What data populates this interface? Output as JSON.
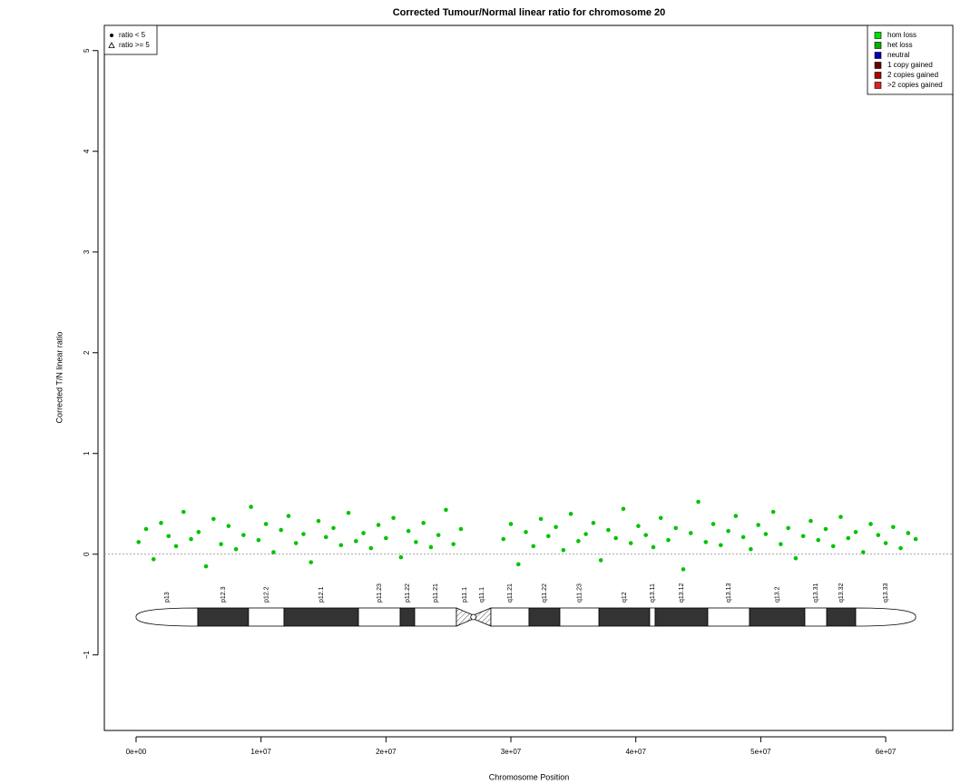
{
  "chart_data": {
    "type": "scatter",
    "title": "Corrected Tumour/Normal linear ratio for chromosome  20",
    "x_label": "Chromosome Position",
    "y_label": "Corrected T/N linear ratio",
    "xlim": [
      -2540000,
      65370000
    ],
    "ylim": [
      -1.75,
      5.25
    ],
    "xticks": [
      {
        "value": 0,
        "label": "0e+00"
      },
      {
        "value": 10000000,
        "label": "1e+07"
      },
      {
        "value": 20000000,
        "label": "2e+07"
      },
      {
        "value": 30000000,
        "label": "3e+07"
      },
      {
        "value": 40000000,
        "label": "4e+07"
      },
      {
        "value": 50000000,
        "label": "5e+07"
      },
      {
        "value": 60000000,
        "label": "6e+07"
      }
    ],
    "yticks": [
      {
        "value": -1,
        "label": "−1"
      },
      0,
      1,
      2,
      3,
      4,
      5
    ],
    "h_line": 0,
    "point_color": "#00c400",
    "x": [
      200000,
      800000,
      1400000,
      2000000,
      2600000,
      3200000,
      3800000,
      4400000,
      5000000,
      5600000,
      6200000,
      6800000,
      7400000,
      8000000,
      8600000,
      9200000,
      9800000,
      10400000,
      11000000,
      11600000,
      12200000,
      12800000,
      13400000,
      14000000,
      14600000,
      15200000,
      15800000,
      16400000,
      17000000,
      17600000,
      18200000,
      18800000,
      19400000,
      20000000,
      20600000,
      21200000,
      21800000,
      22400000,
      23000000,
      23600000,
      24200000,
      24800000,
      25400000,
      26000000,
      29400000,
      30000000,
      30600000,
      31200000,
      31800000,
      32400000,
      33000000,
      33600000,
      34200000,
      34800000,
      35400000,
      36000000,
      36600000,
      37200000,
      37800000,
      38400000,
      39000000,
      39600000,
      40200000,
      40800000,
      41400000,
      42000000,
      42600000,
      43200000,
      43800000,
      44400000,
      45000000,
      45600000,
      46200000,
      46800000,
      47400000,
      48000000,
      48600000,
      49200000,
      49800000,
      50400000,
      51000000,
      51600000,
      52200000,
      52800000,
      53400000,
      54000000,
      54600000,
      55200000,
      55800000,
      56400000,
      57000000,
      57600000,
      58200000,
      58800000,
      59400000,
      60000000,
      60600000,
      61200000,
      61800000,
      62400000
    ],
    "y": [
      0.12,
      0.25,
      -0.05,
      0.31,
      0.18,
      0.08,
      0.42,
      0.15,
      0.22,
      -0.12,
      0.35,
      0.1,
      0.28,
      0.05,
      0.19,
      0.47,
      0.14,
      0.3,
      0.02,
      0.24,
      0.38,
      0.11,
      0.2,
      -0.08,
      0.33,
      0.17,
      0.26,
      0.09,
      0.41,
      0.13,
      0.21,
      0.06,
      0.29,
      0.16,
      0.36,
      -0.03,
      0.23,
      0.12,
      0.31,
      0.07,
      0.19,
      0.44,
      0.1,
      0.25,
      0.15,
      0.3,
      -0.1,
      0.22,
      0.08,
      0.35,
      0.18,
      0.27,
      0.04,
      0.4,
      0.13,
      0.2,
      0.31,
      -0.06,
      0.24,
      0.16,
      0.45,
      0.11,
      0.28,
      0.19,
      0.07,
      0.36,
      0.14,
      0.26,
      -0.15,
      0.21,
      0.52,
      0.12,
      0.3,
      0.09,
      0.23,
      0.38,
      0.17,
      0.05,
      0.29,
      0.2,
      0.42,
      0.1,
      0.26,
      -0.04,
      0.18,
      0.33,
      0.14,
      0.25,
      0.08,
      0.37,
      0.16,
      0.22,
      0.02,
      0.3,
      0.19,
      0.11,
      0.27,
      0.06,
      0.21,
      0.15
    ],
    "shape_legend": [
      {
        "label": "ratio < 5",
        "shape": "circle"
      },
      {
        "label": "ratio >= 5",
        "shape": "triangle"
      }
    ],
    "legend": [
      {
        "label": "hom loss",
        "color": "#00e000"
      },
      {
        "label": "het loss",
        "color": "#00b000"
      },
      {
        "label": "neutral",
        "color": "#0000b0"
      },
      {
        "label": "1 copy gained",
        "color": "#6a0000"
      },
      {
        "label": "2 copies gained",
        "color": "#b00000"
      },
      {
        "label": ">2 copies gained",
        "color": "#e02020"
      }
    ],
    "bands": [
      {
        "name": "p13",
        "start": 0,
        "end": 4940000,
        "stain": "gneg"
      },
      {
        "name": "p12.3",
        "start": 4940000,
        "end": 9000000,
        "stain": "gpos"
      },
      {
        "name": "p12.2",
        "start": 9000000,
        "end": 11840000,
        "stain": "gneg"
      },
      {
        "name": "p12.1",
        "start": 11840000,
        "end": 17800000,
        "stain": "gpos"
      },
      {
        "name": "p11.23",
        "start": 17800000,
        "end": 21140000,
        "stain": "gneg"
      },
      {
        "name": "p11.22",
        "start": 21140000,
        "end": 22300000,
        "stain": "gpos"
      },
      {
        "name": "p11.21",
        "start": 22300000,
        "end": 25640000,
        "stain": "gneg"
      },
      {
        "name": "p11.1",
        "start": 25640000,
        "end": 27000000,
        "stain": "acen"
      },
      {
        "name": "q11.1",
        "start": 27000000,
        "end": 28400000,
        "stain": "acen"
      },
      {
        "name": "q11.21",
        "start": 28400000,
        "end": 31450000,
        "stain": "gneg"
      },
      {
        "name": "q11.22",
        "start": 31450000,
        "end": 33920000,
        "stain": "gpos"
      },
      {
        "name": "q11.23",
        "start": 33920000,
        "end": 37050000,
        "stain": "gneg"
      },
      {
        "name": "q12",
        "start": 37050000,
        "end": 41110000,
        "stain": "gpos"
      },
      {
        "name": "q13.11",
        "start": 41110000,
        "end": 41550000,
        "stain": "gneg"
      },
      {
        "name": "q13.12",
        "start": 41550000,
        "end": 45760000,
        "stain": "gpos"
      },
      {
        "name": "q13.13",
        "start": 45760000,
        "end": 49100000,
        "stain": "gneg"
      },
      {
        "name": "q13.2",
        "start": 49100000,
        "end": 53530000,
        "stain": "gpos"
      },
      {
        "name": "q13.31",
        "start": 53530000,
        "end": 55280000,
        "stain": "gneg"
      },
      {
        "name": "q13.32",
        "start": 55280000,
        "end": 57600000,
        "stain": "gpos"
      },
      {
        "name": "q13.33",
        "start": 57600000,
        "end": 62400000,
        "stain": "gneg"
      }
    ]
  }
}
